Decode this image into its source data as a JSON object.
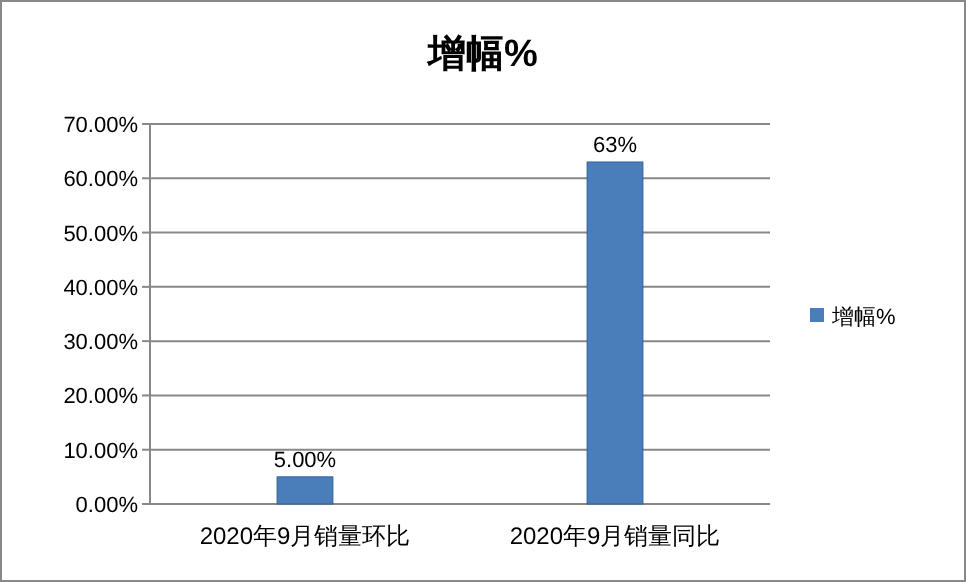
{
  "chart_data": {
    "type": "bar",
    "title": "增幅%",
    "categories": [
      "2020年9月销量环比",
      "2020年9月销量同比"
    ],
    "series": [
      {
        "name": "增幅%",
        "color": "#4a7ebb",
        "values": [
          5,
          63
        ],
        "value_labels": [
          "5.00%",
          "63%"
        ]
      }
    ],
    "ylim": [
      0,
      70
    ],
    "yticks": [
      {
        "value": 0,
        "label": "0.00%"
      },
      {
        "value": 10,
        "label": "10.00%"
      },
      {
        "value": 20,
        "label": "20.00%"
      },
      {
        "value": 30,
        "label": "30.00%"
      },
      {
        "value": 40,
        "label": "40.00%"
      },
      {
        "value": 50,
        "label": "50.00%"
      },
      {
        "value": 60,
        "label": "60.00%"
      },
      {
        "value": 70,
        "label": "70.00%"
      }
    ],
    "grid": "y",
    "legend": "right"
  }
}
